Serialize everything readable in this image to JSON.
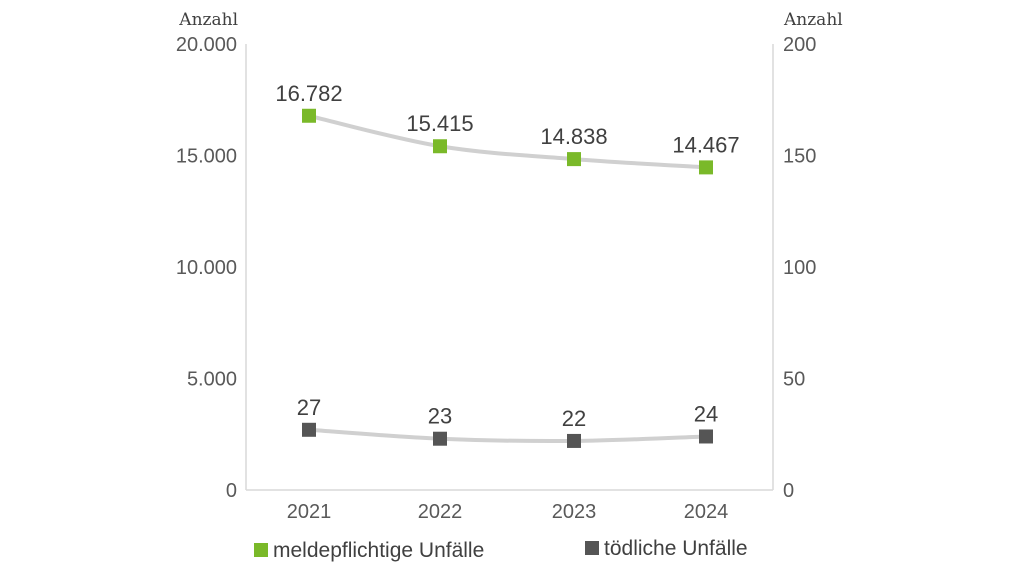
{
  "chart_data": {
    "type": "line",
    "categories": [
      "2021",
      "2022",
      "2023",
      "2024"
    ],
    "left_axis": {
      "unit_label": "Anzahl",
      "ylim": [
        0,
        20000
      ],
      "ticks": [
        "0",
        "5.000",
        "10.000",
        "15.000",
        "20.000"
      ]
    },
    "right_axis": {
      "unit_label": "Anzahl",
      "ylim": [
        0,
        200
      ],
      "ticks": [
        "0",
        "50",
        "100",
        "150",
        "200"
      ]
    },
    "series": [
      {
        "name": "meldepflichtige Unfälle",
        "axis": "left",
        "values": [
          16782,
          15415,
          14838,
          14467
        ],
        "labels": [
          "16.782",
          "15.415",
          "14.838",
          "14.467"
        ],
        "marker_color": "#7ab929",
        "line_color": "#d0d0d0"
      },
      {
        "name": "tödliche Unfälle",
        "axis": "right",
        "values": [
          27,
          23,
          22,
          24
        ],
        "labels": [
          "27",
          "23",
          "22",
          "24"
        ],
        "marker_color": "#555555",
        "line_color": "#d0d0d0"
      }
    ],
    "legend_position": "bottom",
    "grid": false
  }
}
